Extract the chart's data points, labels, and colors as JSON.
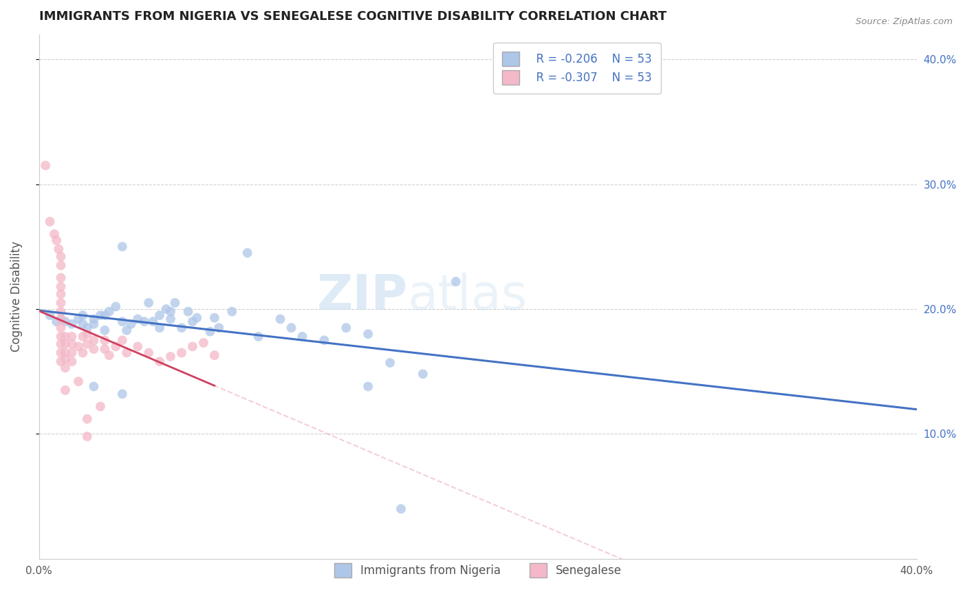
{
  "title": "IMMIGRANTS FROM NIGERIA VS SENEGALESE COGNITIVE DISABILITY CORRELATION CHART",
  "source": "Source: ZipAtlas.com",
  "ylabel": "Cognitive Disability",
  "xlim": [
    0.0,
    0.4
  ],
  "ylim": [
    0.0,
    0.42
  ],
  "nigeria_color": "#aec6e8",
  "senegalese_color": "#f4b8c8",
  "nigeria_line_color": "#4472c4",
  "senegalese_line_color": "#e8a0b0",
  "nigeria_scatter": [
    [
      0.005,
      0.195
    ],
    [
      0.008,
      0.19
    ],
    [
      0.01,
      0.192
    ],
    [
      0.012,
      0.19
    ],
    [
      0.015,
      0.188
    ],
    [
      0.018,
      0.192
    ],
    [
      0.02,
      0.188
    ],
    [
      0.02,
      0.195
    ],
    [
      0.022,
      0.185
    ],
    [
      0.025,
      0.188
    ],
    [
      0.025,
      0.192
    ],
    [
      0.028,
      0.195
    ],
    [
      0.03,
      0.183
    ],
    [
      0.03,
      0.195
    ],
    [
      0.032,
      0.198
    ],
    [
      0.035,
      0.202
    ],
    [
      0.038,
      0.19
    ],
    [
      0.04,
      0.183
    ],
    [
      0.042,
      0.188
    ],
    [
      0.045,
      0.192
    ],
    [
      0.048,
      0.19
    ],
    [
      0.05,
      0.205
    ],
    [
      0.052,
      0.19
    ],
    [
      0.055,
      0.185
    ],
    [
      0.055,
      0.195
    ],
    [
      0.058,
      0.2
    ],
    [
      0.06,
      0.192
    ],
    [
      0.062,
      0.205
    ],
    [
      0.065,
      0.185
    ],
    [
      0.068,
      0.198
    ],
    [
      0.07,
      0.19
    ],
    [
      0.072,
      0.193
    ],
    [
      0.078,
      0.182
    ],
    [
      0.08,
      0.193
    ],
    [
      0.082,
      0.185
    ],
    [
      0.088,
      0.198
    ],
    [
      0.095,
      0.245
    ],
    [
      0.1,
      0.178
    ],
    [
      0.11,
      0.192
    ],
    [
      0.115,
      0.185
    ],
    [
      0.12,
      0.178
    ],
    [
      0.13,
      0.175
    ],
    [
      0.14,
      0.185
    ],
    [
      0.15,
      0.18
    ],
    [
      0.16,
      0.157
    ],
    [
      0.175,
      0.148
    ],
    [
      0.038,
      0.25
    ],
    [
      0.06,
      0.198
    ],
    [
      0.025,
      0.138
    ],
    [
      0.038,
      0.132
    ],
    [
      0.15,
      0.138
    ],
    [
      0.165,
      0.04
    ],
    [
      0.19,
      0.222
    ]
  ],
  "senegalese_scatter": [
    [
      0.003,
      0.315
    ],
    [
      0.005,
      0.27
    ],
    [
      0.007,
      0.26
    ],
    [
      0.008,
      0.255
    ],
    [
      0.009,
      0.248
    ],
    [
      0.01,
      0.242
    ],
    [
      0.01,
      0.235
    ],
    [
      0.01,
      0.225
    ],
    [
      0.01,
      0.218
    ],
    [
      0.01,
      0.212
    ],
    [
      0.01,
      0.205
    ],
    [
      0.01,
      0.198
    ],
    [
      0.01,
      0.192
    ],
    [
      0.01,
      0.185
    ],
    [
      0.01,
      0.178
    ],
    [
      0.01,
      0.172
    ],
    [
      0.01,
      0.165
    ],
    [
      0.01,
      0.158
    ],
    [
      0.012,
      0.178
    ],
    [
      0.012,
      0.172
    ],
    [
      0.012,
      0.165
    ],
    [
      0.012,
      0.16
    ],
    [
      0.012,
      0.153
    ],
    [
      0.015,
      0.178
    ],
    [
      0.015,
      0.172
    ],
    [
      0.015,
      0.165
    ],
    [
      0.015,
      0.158
    ],
    [
      0.018,
      0.17
    ],
    [
      0.02,
      0.178
    ],
    [
      0.02,
      0.165
    ],
    [
      0.022,
      0.18
    ],
    [
      0.022,
      0.172
    ],
    [
      0.025,
      0.175
    ],
    [
      0.025,
      0.168
    ],
    [
      0.03,
      0.175
    ],
    [
      0.03,
      0.168
    ],
    [
      0.032,
      0.163
    ],
    [
      0.035,
      0.17
    ],
    [
      0.038,
      0.175
    ],
    [
      0.04,
      0.165
    ],
    [
      0.045,
      0.17
    ],
    [
      0.05,
      0.165
    ],
    [
      0.055,
      0.158
    ],
    [
      0.06,
      0.162
    ],
    [
      0.065,
      0.165
    ],
    [
      0.07,
      0.17
    ],
    [
      0.075,
      0.173
    ],
    [
      0.08,
      0.163
    ],
    [
      0.012,
      0.135
    ],
    [
      0.018,
      0.142
    ],
    [
      0.022,
      0.112
    ],
    [
      0.022,
      0.098
    ],
    [
      0.028,
      0.122
    ]
  ],
  "watermark_zip": "ZIP",
  "watermark_atlas": "atlas",
  "background_color": "#ffffff",
  "grid_color": "#d0d0d0",
  "right_ytick_color": "#4472c4"
}
